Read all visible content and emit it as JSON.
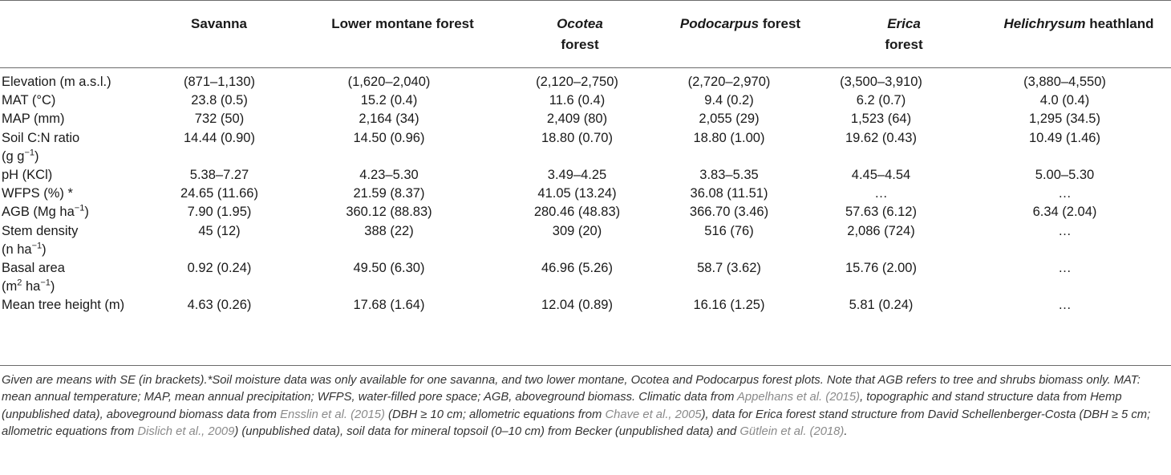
{
  "columns": [
    {
      "pre": "",
      "em": "",
      "post": "Savanna",
      "line2": ""
    },
    {
      "pre": "",
      "em": "",
      "post": "Lower montane forest",
      "line2": ""
    },
    {
      "pre": "",
      "em": "Ocotea",
      "post": "",
      "line2": "forest"
    },
    {
      "pre": "",
      "em": "Podocarpus",
      "post": " forest",
      "line2": ""
    },
    {
      "pre": "",
      "em": "Erica",
      "post": "",
      "line2": "forest"
    },
    {
      "pre": "",
      "em": "Helichrysum",
      "post": " heathland",
      "line2": ""
    }
  ],
  "rows": [
    {
      "label": "Elevation (m a.s.l.)",
      "values": [
        "(871–1,130)",
        "(1,620–2,040)",
        "(2,120–2,750)",
        "(2,720–2,970)",
        "(3,500–3,910)",
        "(3,880–4,550)"
      ]
    },
    {
      "label": "MAT (°C)",
      "values": [
        "23.8 (0.5)",
        "15.2 (0.4)",
        "11.6 (0.4)",
        "9.4 (0.2)",
        "6.2 (0.7)",
        "4.0 (0.4)"
      ]
    },
    {
      "label": "MAP (mm)",
      "values": [
        "732 (50)",
        "2,164 (34)",
        "2,409 (80)",
        "2,055 (29)",
        "1,523 (64)",
        "1,295 (34.5)"
      ]
    },
    {
      "label": "Soil C:N ratio",
      "label2": "(g g",
      "label2_sup": "−1",
      "label2_post": ")",
      "values": [
        "14.44 (0.90)",
        "14.50 (0.96)",
        "18.80 (0.70)",
        "18.80 (1.00)",
        "19.62 (0.43)",
        "10.49 (1.46)"
      ]
    },
    {
      "label": "pH (KCl)",
      "values": [
        "5.38–7.27",
        "4.23–5.30",
        "3.49–4.25",
        "3.83–5.35",
        "4.45–4.54",
        "5.00–5.30"
      ]
    },
    {
      "label": "WFPS (%) *",
      "values": [
        "24.65 (11.66)",
        "21.59 (8.37)",
        "41.05 (13.24)",
        "36.08 (11.51)",
        "…",
        "…"
      ]
    },
    {
      "label": "AGB (Mg ha",
      "label_sup": "−1",
      "label_post": ")",
      "values": [
        "7.90 (1.95)",
        "360.12 (88.83)",
        "280.46 (48.83)",
        "366.70 (3.46)",
        "57.63 (6.12)",
        "6.34 (2.04)"
      ]
    },
    {
      "label": "Stem density",
      "label2": "(n ha",
      "label2_sup": "−1",
      "label2_post": ")",
      "values": [
        "45 (12)",
        "388 (22)",
        "309 (20)",
        "516 (76)",
        "2,086 (724)",
        "…"
      ]
    },
    {
      "label": "Basal area",
      "label2": "(m",
      "label2_sup": "2",
      "label2_mid": " ha",
      "label2_sup2": "−1",
      "label2_post": ")",
      "values": [
        "0.92 (0.24)",
        "49.50 (6.30)",
        "46.96 (5.26)",
        "58.7 (3.62)",
        "15.76 (2.00)",
        "…"
      ]
    },
    {
      "label": "Mean tree height (m)",
      "values": [
        "4.63 (0.26)",
        "17.68 (1.64)",
        "12.04 (0.89)",
        "16.16 (1.25)",
        "5.81 (0.24)",
        "…"
      ]
    }
  ],
  "footnote": [
    {
      "t": "Given are means with SE (in brackets).*Soil moisture data was only available for one savanna, and two lower montane, Ocotea and Podocarpus forest plots. Note that AGB refers to tree and shrubs biomass only. MAT: mean annual temperature; MAP, mean annual precipitation; WFPS, water-filled pore space; AGB, aboveground biomass. Climatic data from "
    },
    {
      "t": "Appelhans et al. (2015)",
      "ref": true
    },
    {
      "t": ", topographic and stand structure data from Hemp (unpublished data), aboveground biomass data from "
    },
    {
      "t": "Ensslin et al. (2015)",
      "ref": true
    },
    {
      "t": " (DBH ≥ 10 cm; allometric equations from "
    },
    {
      "t": "Chave et al., 2005",
      "ref": true
    },
    {
      "t": "), data for Erica forest stand structure from David Schellenberger-Costa (DBH ≥ 5 cm; allometric equations from "
    },
    {
      "t": "Dislich et al., 2009",
      "ref": true
    },
    {
      "t": ") (unpublished data), soil data for mineral topsoil (0–10 cm) from Becker (unpublished data) and "
    },
    {
      "t": "Gütlein et al. (2018)",
      "ref": true
    },
    {
      "t": "."
    }
  ]
}
